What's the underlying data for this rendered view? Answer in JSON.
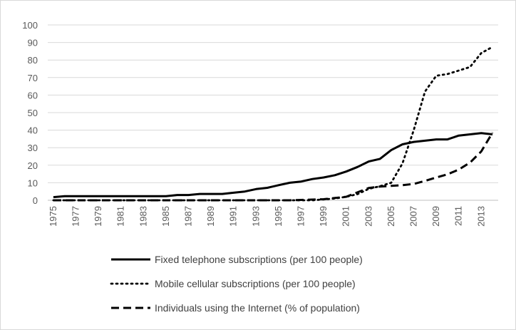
{
  "chart_data": {
    "type": "line",
    "title": "",
    "xlabel": "",
    "ylabel": "",
    "ylim": [
      0,
      100
    ],
    "yticks": [
      0,
      10,
      20,
      30,
      40,
      50,
      60,
      70,
      80,
      90,
      100
    ],
    "x": [
      1975,
      1976,
      1977,
      1978,
      1979,
      1980,
      1981,
      1982,
      1983,
      1984,
      1985,
      1986,
      1987,
      1988,
      1989,
      1990,
      1991,
      1992,
      1993,
      1994,
      1995,
      1996,
      1997,
      1998,
      1999,
      2000,
      2001,
      2002,
      2003,
      2004,
      2005,
      2006,
      2007,
      2008,
      2009,
      2010,
      2011,
      2012,
      2013,
      2014
    ],
    "xtick_labels": [
      "1975",
      "1977",
      "1979",
      "1981",
      "1983",
      "1985",
      "1987",
      "1989",
      "1991",
      "1993",
      "1995",
      "1997",
      "1999",
      "2001",
      "2003",
      "2005",
      "2007",
      "2009",
      "2011",
      "2013"
    ],
    "grid": true,
    "legend_position": "bottom",
    "series": [
      {
        "name": "Fixed telephone subscriptions (per 100 people)",
        "style": "solid",
        "color": "#000000",
        "values": [
          1.8,
          2.3,
          2.3,
          2.3,
          2.3,
          2.3,
          2.3,
          2.3,
          2.3,
          2.3,
          2.3,
          3.0,
          3.0,
          3.6,
          3.6,
          3.6,
          4.3,
          5.0,
          6.4,
          7.1,
          8.6,
          10.0,
          10.7,
          12.1,
          13.0,
          14.3,
          16.4,
          19.0,
          22.1,
          23.6,
          28.6,
          31.9,
          33.3,
          34.0,
          34.7,
          34.7,
          36.9,
          37.6,
          38.3,
          37.6
        ]
      },
      {
        "name": "Mobile cellular subscriptions (per 100 people)",
        "style": "dotted",
        "color": "#000000",
        "values": [
          0,
          0,
          0,
          0,
          0,
          0,
          0,
          0,
          0,
          0,
          0,
          0,
          0,
          0,
          0,
          0,
          0,
          0,
          0,
          0,
          0,
          0,
          0,
          0,
          0.5,
          1.0,
          2.0,
          3.5,
          6.5,
          8.0,
          10.0,
          21.0,
          40.0,
          62.0,
          71.0,
          72.0,
          74.0,
          76.0,
          84.0,
          87.5
        ]
      },
      {
        "name": "Individuals using the Internet (% of population)",
        "style": "dashed",
        "color": "#000000",
        "values": [
          0,
          0,
          0,
          0,
          0,
          0,
          0,
          0,
          0,
          0,
          0,
          0,
          0,
          0,
          0,
          0,
          0,
          0,
          0,
          0,
          0,
          0,
          0.2,
          0.4,
          0.6,
          1.3,
          2.0,
          4.5,
          7.0,
          7.8,
          8.2,
          8.6,
          9.3,
          11.0,
          13.0,
          14.8,
          17.5,
          21.5,
          27.9,
          38.6
        ]
      }
    ]
  }
}
